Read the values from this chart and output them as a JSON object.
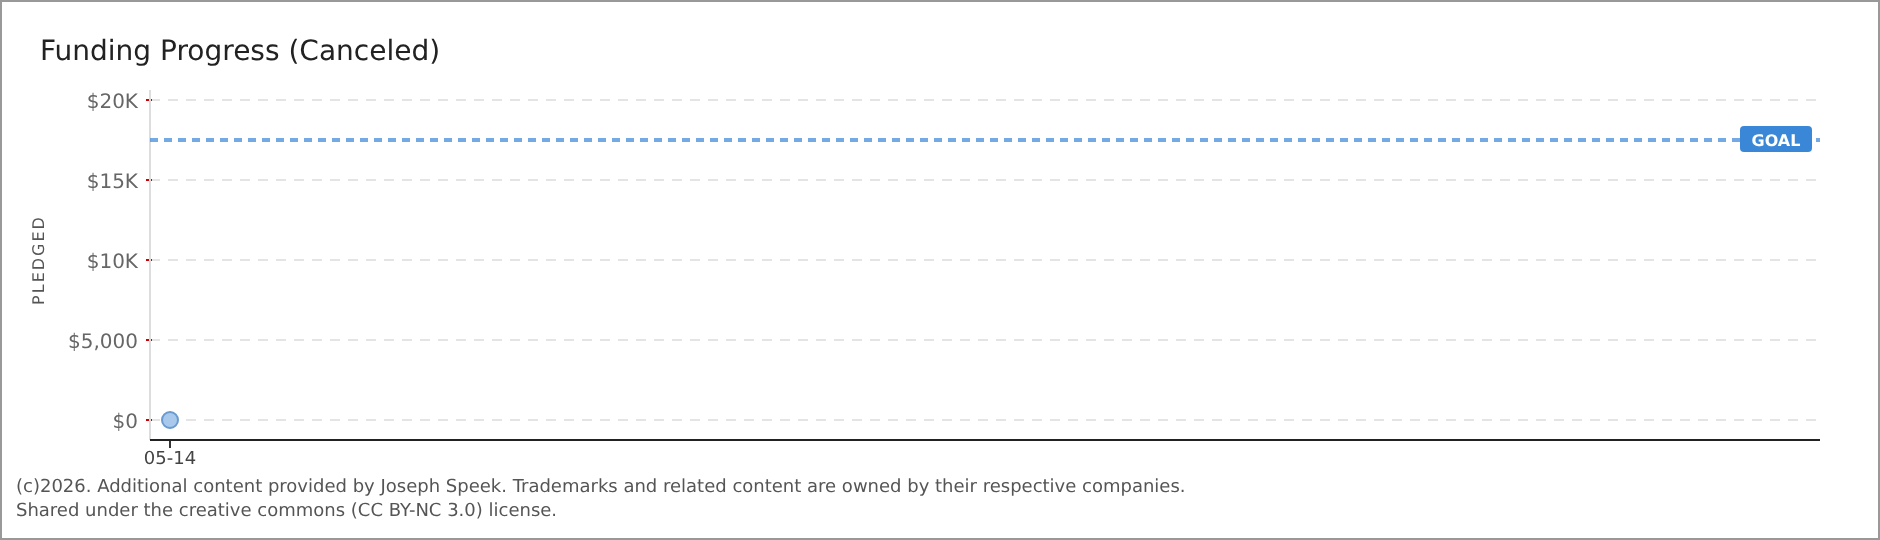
{
  "chart_data": {
    "type": "line",
    "title": "Funding Progress (Canceled)",
    "ylabel": "PLEDGED",
    "categories": [
      "05-14"
    ],
    "series": [
      {
        "color": "#a8c8ec",
        "values": [
          0
        ]
      }
    ],
    "ylim": [
      0,
      20000
    ],
    "yticks": [
      {
        "value": 0,
        "label": "$0"
      },
      {
        "value": 5000,
        "label": "$5,000"
      },
      {
        "value": 10000,
        "label": "$10K"
      },
      {
        "value": 15000,
        "label": "$15K"
      },
      {
        "value": 20000,
        "label": "$20K"
      }
    ],
    "grid": "y",
    "marker": "circle",
    "ref_lines": [
      {
        "axis": "y",
        "value": 17500,
        "label": "GOAL",
        "color": "#3a87d8",
        "line_style": "dashed"
      }
    ],
    "annotations": [
      "(c)2026. Additional content provided by Joseph Speek. Trademarks and related content are owned by their respective companies.",
      "Shared under the creative commons (CC BY-NC 3.0) license."
    ]
  }
}
